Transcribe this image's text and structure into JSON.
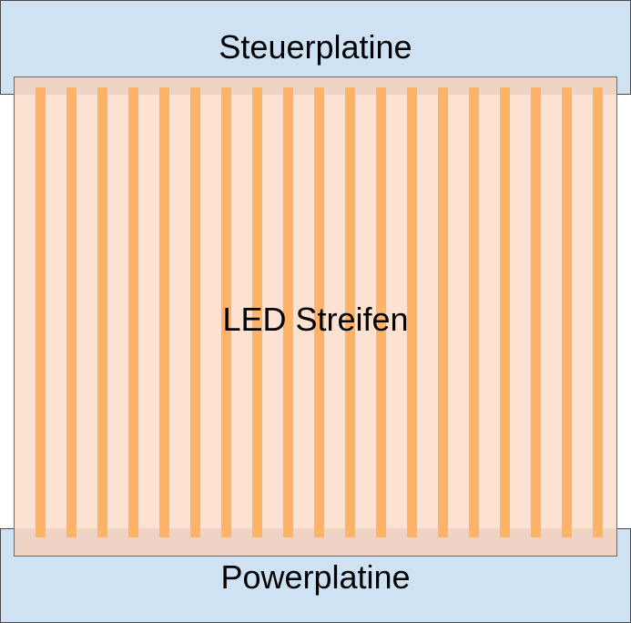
{
  "boards": {
    "top_label": "Steuerplatine",
    "bottom_label": "Powerplatine",
    "color": "#cfe2f3"
  },
  "led_area": {
    "label": "LED Streifen",
    "fill_color": "#fde2d2",
    "overlap_color": "#efd3c4",
    "strip_color": "#ffb366",
    "strip_count": 19
  }
}
